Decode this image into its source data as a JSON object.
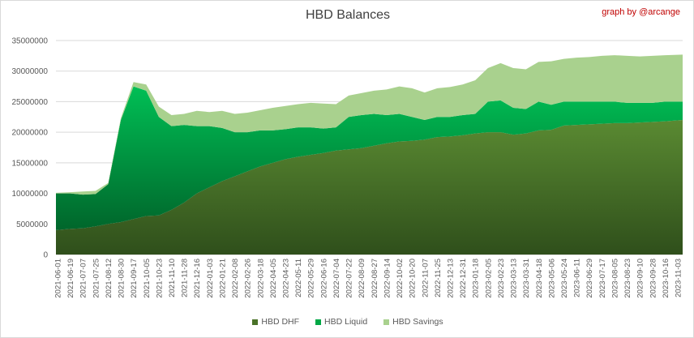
{
  "chart_data": {
    "type": "area",
    "stacked": true,
    "title": "HBD Balances",
    "annotation": "graph by @arcange",
    "xlabel": "",
    "ylabel": "",
    "ylim": [
      0,
      35000000
    ],
    "yticks": [
      "0",
      "5000000",
      "10000000",
      "15000000",
      "20000000",
      "25000000",
      "30000000",
      "35000000"
    ],
    "grid": true,
    "legend_position": "bottom",
    "value_scale": 1000000,
    "categories": [
      "2021-06-01",
      "2021-06-19",
      "2021-07-07",
      "2021-07-25",
      "2021-08-12",
      "2021-08-30",
      "2021-09-17",
      "2021-10-05",
      "2021-10-23",
      "2021-11-10",
      "2021-11-28",
      "2021-12-16",
      "2022-01-03",
      "2022-01-21",
      "2022-02-08",
      "2022-02-26",
      "2022-03-18",
      "2022-04-05",
      "2022-04-23",
      "2022-05-11",
      "2022-05-29",
      "2022-06-16",
      "2022-07-04",
      "2022-07-22",
      "2022-08-09",
      "2022-08-27",
      "2022-09-14",
      "2022-10-02",
      "2022-10-20",
      "2022-11-07",
      "2022-11-25",
      "2022-12-13",
      "2022-12-31",
      "2023-01-18",
      "2023-02-05",
      "2023-02-23",
      "2023-03-13",
      "2023-03-31",
      "2023-04-18",
      "2023-05-06",
      "2023-05-24",
      "2023-06-11",
      "2023-06-29",
      "2023-07-17",
      "2023-08-05",
      "2023-08-23",
      "2023-09-10",
      "2023-09-28",
      "2023-10-16",
      "2023-11-03"
    ],
    "series": [
      {
        "name": "HBD DHF",
        "color": "#4a7228",
        "values": [
          4.0,
          4.2,
          4.3,
          4.6,
          5.0,
          5.3,
          5.8,
          6.3,
          6.4,
          7.3,
          8.5,
          10.0,
          11.0,
          12.0,
          12.8,
          13.6,
          14.4,
          15.0,
          15.6,
          16.0,
          16.3,
          16.6,
          17.0,
          17.2,
          17.4,
          17.8,
          18.2,
          18.5,
          18.6,
          18.8,
          19.2,
          19.3,
          19.5,
          19.8,
          20.0,
          20.0,
          19.6,
          19.8,
          20.3,
          20.4,
          21.1,
          21.2,
          21.3,
          21.4,
          21.5,
          21.5,
          21.6,
          21.7,
          21.8,
          22.0
        ]
      },
      {
        "name": "HBD Liquid",
        "color": "#00a846",
        "values": [
          6.0,
          5.8,
          5.5,
          5.3,
          6.5,
          16.7,
          21.7,
          20.5,
          16.1,
          13.7,
          12.7,
          11.0,
          10.0,
          8.7,
          7.2,
          6.4,
          5.9,
          5.3,
          4.9,
          4.8,
          4.5,
          4.0,
          3.8,
          5.3,
          5.4,
          5.2,
          4.6,
          4.5,
          3.9,
          3.2,
          3.3,
          3.2,
          3.3,
          3.2,
          5.0,
          5.2,
          4.4,
          4.0,
          4.7,
          4.1,
          3.9,
          3.8,
          3.7,
          3.6,
          3.5,
          3.3,
          3.2,
          3.1,
          3.2,
          3.0
        ]
      },
      {
        "name": "HBD Savings",
        "color": "#a9d18e",
        "values": [
          0.1,
          0.2,
          0.5,
          0.5,
          0.2,
          0.3,
          0.7,
          1.0,
          1.7,
          1.8,
          1.8,
          2.5,
          2.3,
          2.8,
          3.0,
          3.2,
          3.3,
          3.7,
          3.8,
          3.8,
          4.0,
          4.1,
          3.8,
          3.5,
          3.6,
          3.8,
          4.2,
          4.5,
          4.7,
          4.5,
          4.7,
          4.9,
          5.0,
          5.5,
          5.5,
          6.1,
          6.5,
          6.5,
          6.5,
          7.1,
          7.0,
          7.2,
          7.3,
          7.5,
          7.6,
          7.7,
          7.6,
          7.7,
          7.6,
          7.7
        ]
      }
    ]
  }
}
